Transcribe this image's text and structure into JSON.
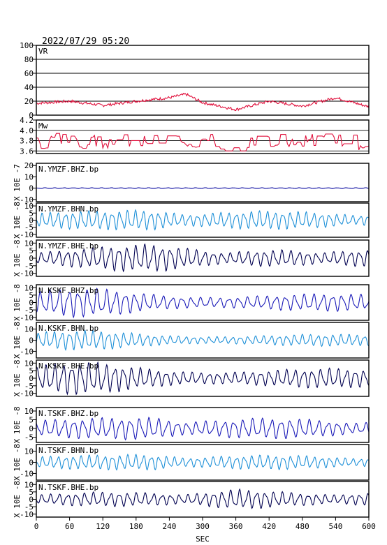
{
  "title": "2022/07/29 05:20",
  "xlabel": "SEC",
  "chart_data": {
    "type": "line",
    "x_ticks": [
      0,
      60,
      120,
      180,
      240,
      300,
      360,
      420,
      480,
      540,
      600
    ],
    "xlim": [
      0,
      600
    ],
    "panels": [
      {
        "label": "VR",
        "ylabel": "",
        "ylim": [
          0,
          100
        ],
        "yticks": [
          0,
          20,
          40,
          60,
          80,
          100
        ],
        "grid": true,
        "color": "#e0103c",
        "series_profile": {
          "x": [
            0,
            60,
            120,
            180,
            240,
            270,
            300,
            360,
            420,
            480,
            540,
            600
          ],
          "y": [
            17,
            20,
            14,
            20,
            25,
            30,
            18,
            8,
            20,
            13,
            25,
            12
          ]
        }
      },
      {
        "label": "Mw",
        "ylabel": "",
        "ylim": [
          3.55,
          4.2
        ],
        "yticks": [
          3.6,
          3.8,
          4.0,
          4.2
        ],
        "yticklabels": [
          "3.6",
          "3.8",
          "4.0",
          "4.2"
        ],
        "grid": true,
        "color": "#e0103c"
      },
      {
        "label": "N.YMZF.BHZ.bp",
        "ylabel": "X 10E -7",
        "ylim": [
          -12,
          22
        ],
        "yticks": [
          -10,
          0,
          10,
          20
        ],
        "color": "#0a0aa0",
        "amp": 0.8,
        "env": "flat"
      },
      {
        "label": "N.YMZF.BHN.bp",
        "ylabel": "X 10E -8",
        "ylim": [
          -12,
          12
        ],
        "yticks": [
          -10,
          -5,
          0,
          5,
          10
        ],
        "color": "#1e90d8",
        "amp": 5.5,
        "env": "mid"
      },
      {
        "label": "N.YMZF.BHE.bp",
        "ylabel": "X 10E -8",
        "ylim": [
          -12,
          12
        ],
        "yticks": [
          -10,
          -5,
          0,
          5,
          10
        ],
        "color": "#000050",
        "amp": 6.5,
        "env": "spiky"
      },
      {
        "label": "N.KSKF.BHZ.bp",
        "ylabel": "X 10E -8",
        "ylim": [
          -12,
          12
        ],
        "yticks": [
          -10,
          -5,
          0,
          5,
          10
        ],
        "color": "#1a1ab8",
        "amp": 5.5,
        "env": "early"
      },
      {
        "label": "N.KSKF.BHN.bp",
        "ylabel": "X 10E -8",
        "ylim": [
          -16,
          16
        ],
        "yticks": [
          -10,
          0,
          10
        ],
        "color": "#1e90d8",
        "amp": 5,
        "env": "early"
      },
      {
        "label": "N.KSKF.BHE.bp",
        "ylabel": "X 10E -8",
        "ylim": [
          -12,
          12
        ],
        "yticks": [
          -10,
          -5,
          0,
          5,
          10
        ],
        "color": "#000050",
        "amp": 6,
        "env": "early"
      },
      {
        "label": "N.TSKF.BHZ.bp",
        "ylabel": "X 10E -8",
        "ylim": [
          -8,
          12
        ],
        "yticks": [
          -5,
          0,
          5,
          10
        ],
        "color": "#1a1ab8",
        "amp": 5,
        "env": "mid"
      },
      {
        "label": "N.TSKF.BHN.bp",
        "ylabel": "X 10E -8",
        "ylim": [
          -16,
          16
        ],
        "yticks": [
          -10,
          0,
          10
        ],
        "color": "#1e90d8",
        "amp": 5.5,
        "env": "mid"
      },
      {
        "label": "N.TSKF.BHE.bp",
        "ylabel": "X 10E -8",
        "ylim": [
          -12,
          12
        ],
        "yticks": [
          -10,
          -5,
          0,
          5,
          10
        ],
        "color": "#000050",
        "amp": 5,
        "env": "late"
      }
    ]
  }
}
